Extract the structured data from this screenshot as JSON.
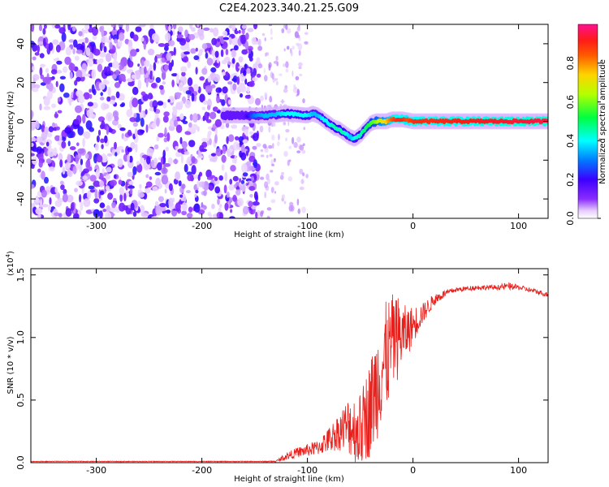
{
  "title": "C2E4.2023.340.21.25.G09",
  "colors": {
    "heat_low": "#6a00ff",
    "heat_mid": "#00ffff",
    "heat_high": "#ff1060",
    "snr_line": "#e8201c"
  },
  "colorbar": {
    "label": "Normalized spectral amplitude",
    "ticks": [
      "0.0",
      "0.2",
      "0.4",
      "0.6",
      "0.8"
    ],
    "tick_values": [
      0,
      0.2,
      0.4,
      0.6,
      0.8
    ],
    "range": [
      0,
      1
    ],
    "colormap": "rainbow (violet → blue → cyan → green → yellow → red → magenta)"
  },
  "chart_data": [
    {
      "type": "heatmap",
      "xlabel": "Height of straight line (km)",
      "ylabel": "Frequency (Hz)",
      "xlim": [
        -362,
        128
      ],
      "ylim": [
        -50,
        50
      ],
      "x_ticks": [
        -300,
        -200,
        -100,
        0,
        100
      ],
      "x_tick_labels": [
        "-300",
        "-200",
        "-100",
        "0",
        "100"
      ],
      "y_ticks": [
        -40,
        -20,
        0,
        20,
        40
      ],
      "y_tick_labels": [
        "-40",
        "-20",
        "0",
        "20",
        "40"
      ],
      "grid": false,
      "noise_region_km": [
        -362,
        -146
      ],
      "signal_trace": {
        "x": [
          -180,
          -160,
          -150,
          -140,
          -130,
          -120,
          -110,
          -100,
          -95,
          -90,
          -85,
          -80,
          -75,
          -70,
          -65,
          -60,
          -55,
          -50,
          -45,
          -40,
          -35,
          -30,
          -25,
          -20,
          -15,
          -10,
          -5,
          0,
          20,
          50,
          80,
          128
        ],
        "y": [
          3,
          3,
          3,
          3,
          3.5,
          4,
          3.5,
          3,
          4,
          3,
          1,
          -1,
          -3,
          -4,
          -6,
          -8,
          -9,
          -7,
          -4,
          -1,
          0,
          0,
          0,
          1,
          1,
          1,
          0.5,
          0,
          0,
          0,
          0,
          0
        ],
        "amplitude": [
          0.2,
          0.15,
          0.3,
          0.35,
          0.35,
          0.4,
          0.4,
          0.4,
          0.35,
          0.35,
          0.4,
          0.4,
          0.45,
          0.45,
          0.45,
          0.35,
          0.4,
          0.45,
          0.5,
          0.55,
          0.6,
          0.7,
          0.75,
          0.85,
          0.9,
          0.9,
          0.85,
          0.9,
          0.9,
          0.92,
          0.93,
          0.95
        ]
      }
    },
    {
      "type": "line",
      "xlabel": "Height of straight line (km)",
      "ylabel": "SNR (10 * v/v)",
      "y_multiplier": "(x10",
      "y_multiplier_exp": "4",
      "y_multiplier_close": ")",
      "xlim": [
        -362,
        128
      ],
      "ylim": [
        0,
        1.55
      ],
      "x_ticks": [
        -300,
        -200,
        -100,
        0,
        100
      ],
      "x_tick_labels": [
        "-300",
        "-200",
        "-100",
        "0",
        "100"
      ],
      "y_ticks": [
        0,
        0.5,
        1.0,
        1.5
      ],
      "y_tick_labels": [
        "0.0",
        "0.5",
        "1.0",
        "1.5"
      ],
      "grid": false,
      "series": [
        {
          "x": [
            -362,
            -300,
            -200,
            -150,
            -130,
            -125,
            -120,
            -110,
            -100,
            -90,
            -80,
            -70,
            -60,
            -50,
            -45,
            -40,
            -35,
            -30,
            -25,
            -20,
            -15,
            -10,
            -5,
            0,
            10,
            20,
            30,
            40,
            50,
            60,
            70,
            80,
            90,
            100,
            110,
            120,
            128
          ],
          "y": [
            0.01,
            0.01,
            0.01,
            0.01,
            0.01,
            0.03,
            0.05,
            0.08,
            0.1,
            0.12,
            0.18,
            0.25,
            0.3,
            0.25,
            0.35,
            0.45,
            0.6,
            0.75,
            0.85,
            0.95,
            1.0,
            1.02,
            1.05,
            1.1,
            1.2,
            1.3,
            1.35,
            1.38,
            1.39,
            1.4,
            1.4,
            1.4,
            1.41,
            1.4,
            1.38,
            1.36,
            1.34
          ],
          "noise_amplitude": [
            0.003,
            0.003,
            0.003,
            0.003,
            0.005,
            0.02,
            0.03,
            0.04,
            0.05,
            0.06,
            0.1,
            0.15,
            0.25,
            0.3,
            0.35,
            0.4,
            0.45,
            0.45,
            0.45,
            0.4,
            0.35,
            0.25,
            0.2,
            0.15,
            0.08,
            0.05,
            0.03,
            0.02,
            0.02,
            0.02,
            0.02,
            0.02,
            0.03,
            0.02,
            0.02,
            0.02,
            0.02
          ]
        }
      ]
    }
  ]
}
